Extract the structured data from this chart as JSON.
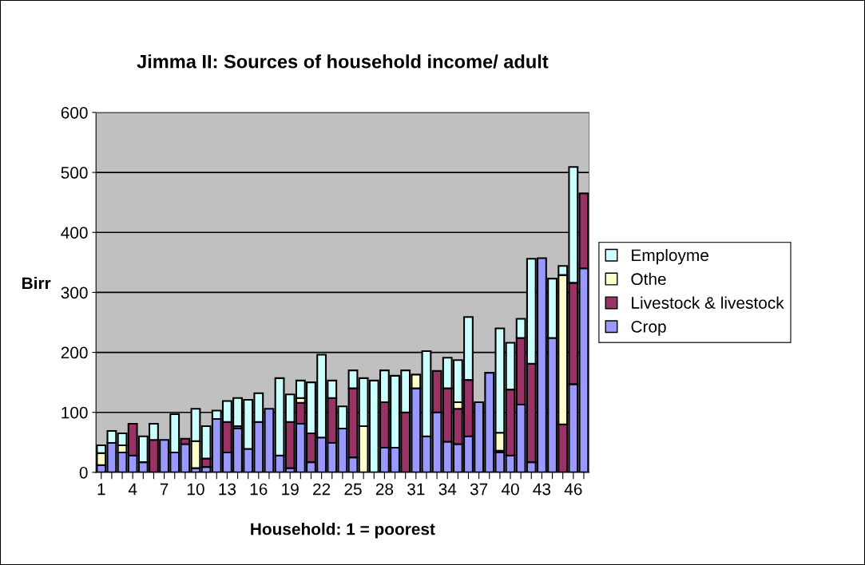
{
  "chart_data": {
    "type": "bar",
    "stacked": true,
    "title": "Jimma II: Sources of household income/ adult",
    "xlabel": "Household: 1 = poorest",
    "ylabel": "Birr",
    "categories": [
      "1",
      null,
      null,
      "4",
      null,
      null,
      "7",
      null,
      null,
      "10",
      null,
      null,
      "13",
      null,
      null,
      "16",
      null,
      null,
      "19",
      null,
      null,
      "22",
      null,
      null,
      "25",
      null,
      null,
      "28",
      null,
      null,
      "31",
      null,
      null,
      "34",
      null,
      null,
      "37",
      null,
      null,
      "40",
      null,
      null,
      "43",
      null,
      null,
      "46",
      null
    ],
    "series": [
      {
        "name": "Crop",
        "color": "#9999ff",
        "values": [
          12,
          49,
          33,
          28,
          17,
          0,
          54,
          33,
          47,
          7,
          9,
          89,
          33,
          73,
          39,
          84,
          106,
          28,
          7,
          81,
          17,
          58,
          49,
          73,
          25,
          0,
          0,
          41,
          41,
          0,
          140,
          60,
          100,
          51,
          47,
          60,
          117,
          166,
          33,
          28,
          113,
          17,
          357,
          224,
          0,
          147,
          340
        ]
      },
      {
        "name": "Livestock & livestock",
        "color": "#993366",
        "values": [
          0,
          0,
          0,
          53,
          0,
          54,
          0,
          0,
          9,
          0,
          14,
          0,
          51,
          4,
          0,
          0,
          0,
          0,
          77,
          35,
          48,
          0,
          75,
          0,
          115,
          0,
          0,
          76,
          0,
          100,
          0,
          0,
          69,
          89,
          59,
          94,
          0,
          0,
          3,
          110,
          111,
          164,
          0,
          0,
          80,
          169,
          125
        ]
      },
      {
        "name": "Othe",
        "color": "#ffffcc",
        "values": [
          20,
          0,
          12,
          0,
          0,
          0,
          0,
          0,
          0,
          45,
          0,
          0,
          0,
          0,
          0,
          0,
          0,
          0,
          0,
          8,
          0,
          0,
          0,
          0,
          0,
          77,
          0,
          0,
          0,
          0,
          23,
          0,
          0,
          0,
          11,
          0,
          0,
          0,
          30,
          0,
          0,
          0,
          0,
          0,
          249,
          0,
          0
        ]
      },
      {
        "name": "Employme",
        "color": "#ccffff",
        "values": [
          13,
          20,
          20,
          0,
          43,
          27,
          0,
          64,
          0,
          54,
          54,
          14,
          35,
          47,
          82,
          48,
          0,
          129,
          46,
          29,
          85,
          138,
          29,
          37,
          30,
          80,
          153,
          53,
          120,
          70,
          0,
          142,
          0,
          51,
          70,
          105,
          0,
          0,
          174,
          78,
          32,
          175,
          0,
          99,
          15,
          193,
          0
        ]
      }
    ],
    "ylim": [
      0,
      600
    ],
    "yticks": [
      0,
      100,
      200,
      300,
      400,
      500,
      600
    ],
    "grid": "y",
    "legend": "right"
  }
}
